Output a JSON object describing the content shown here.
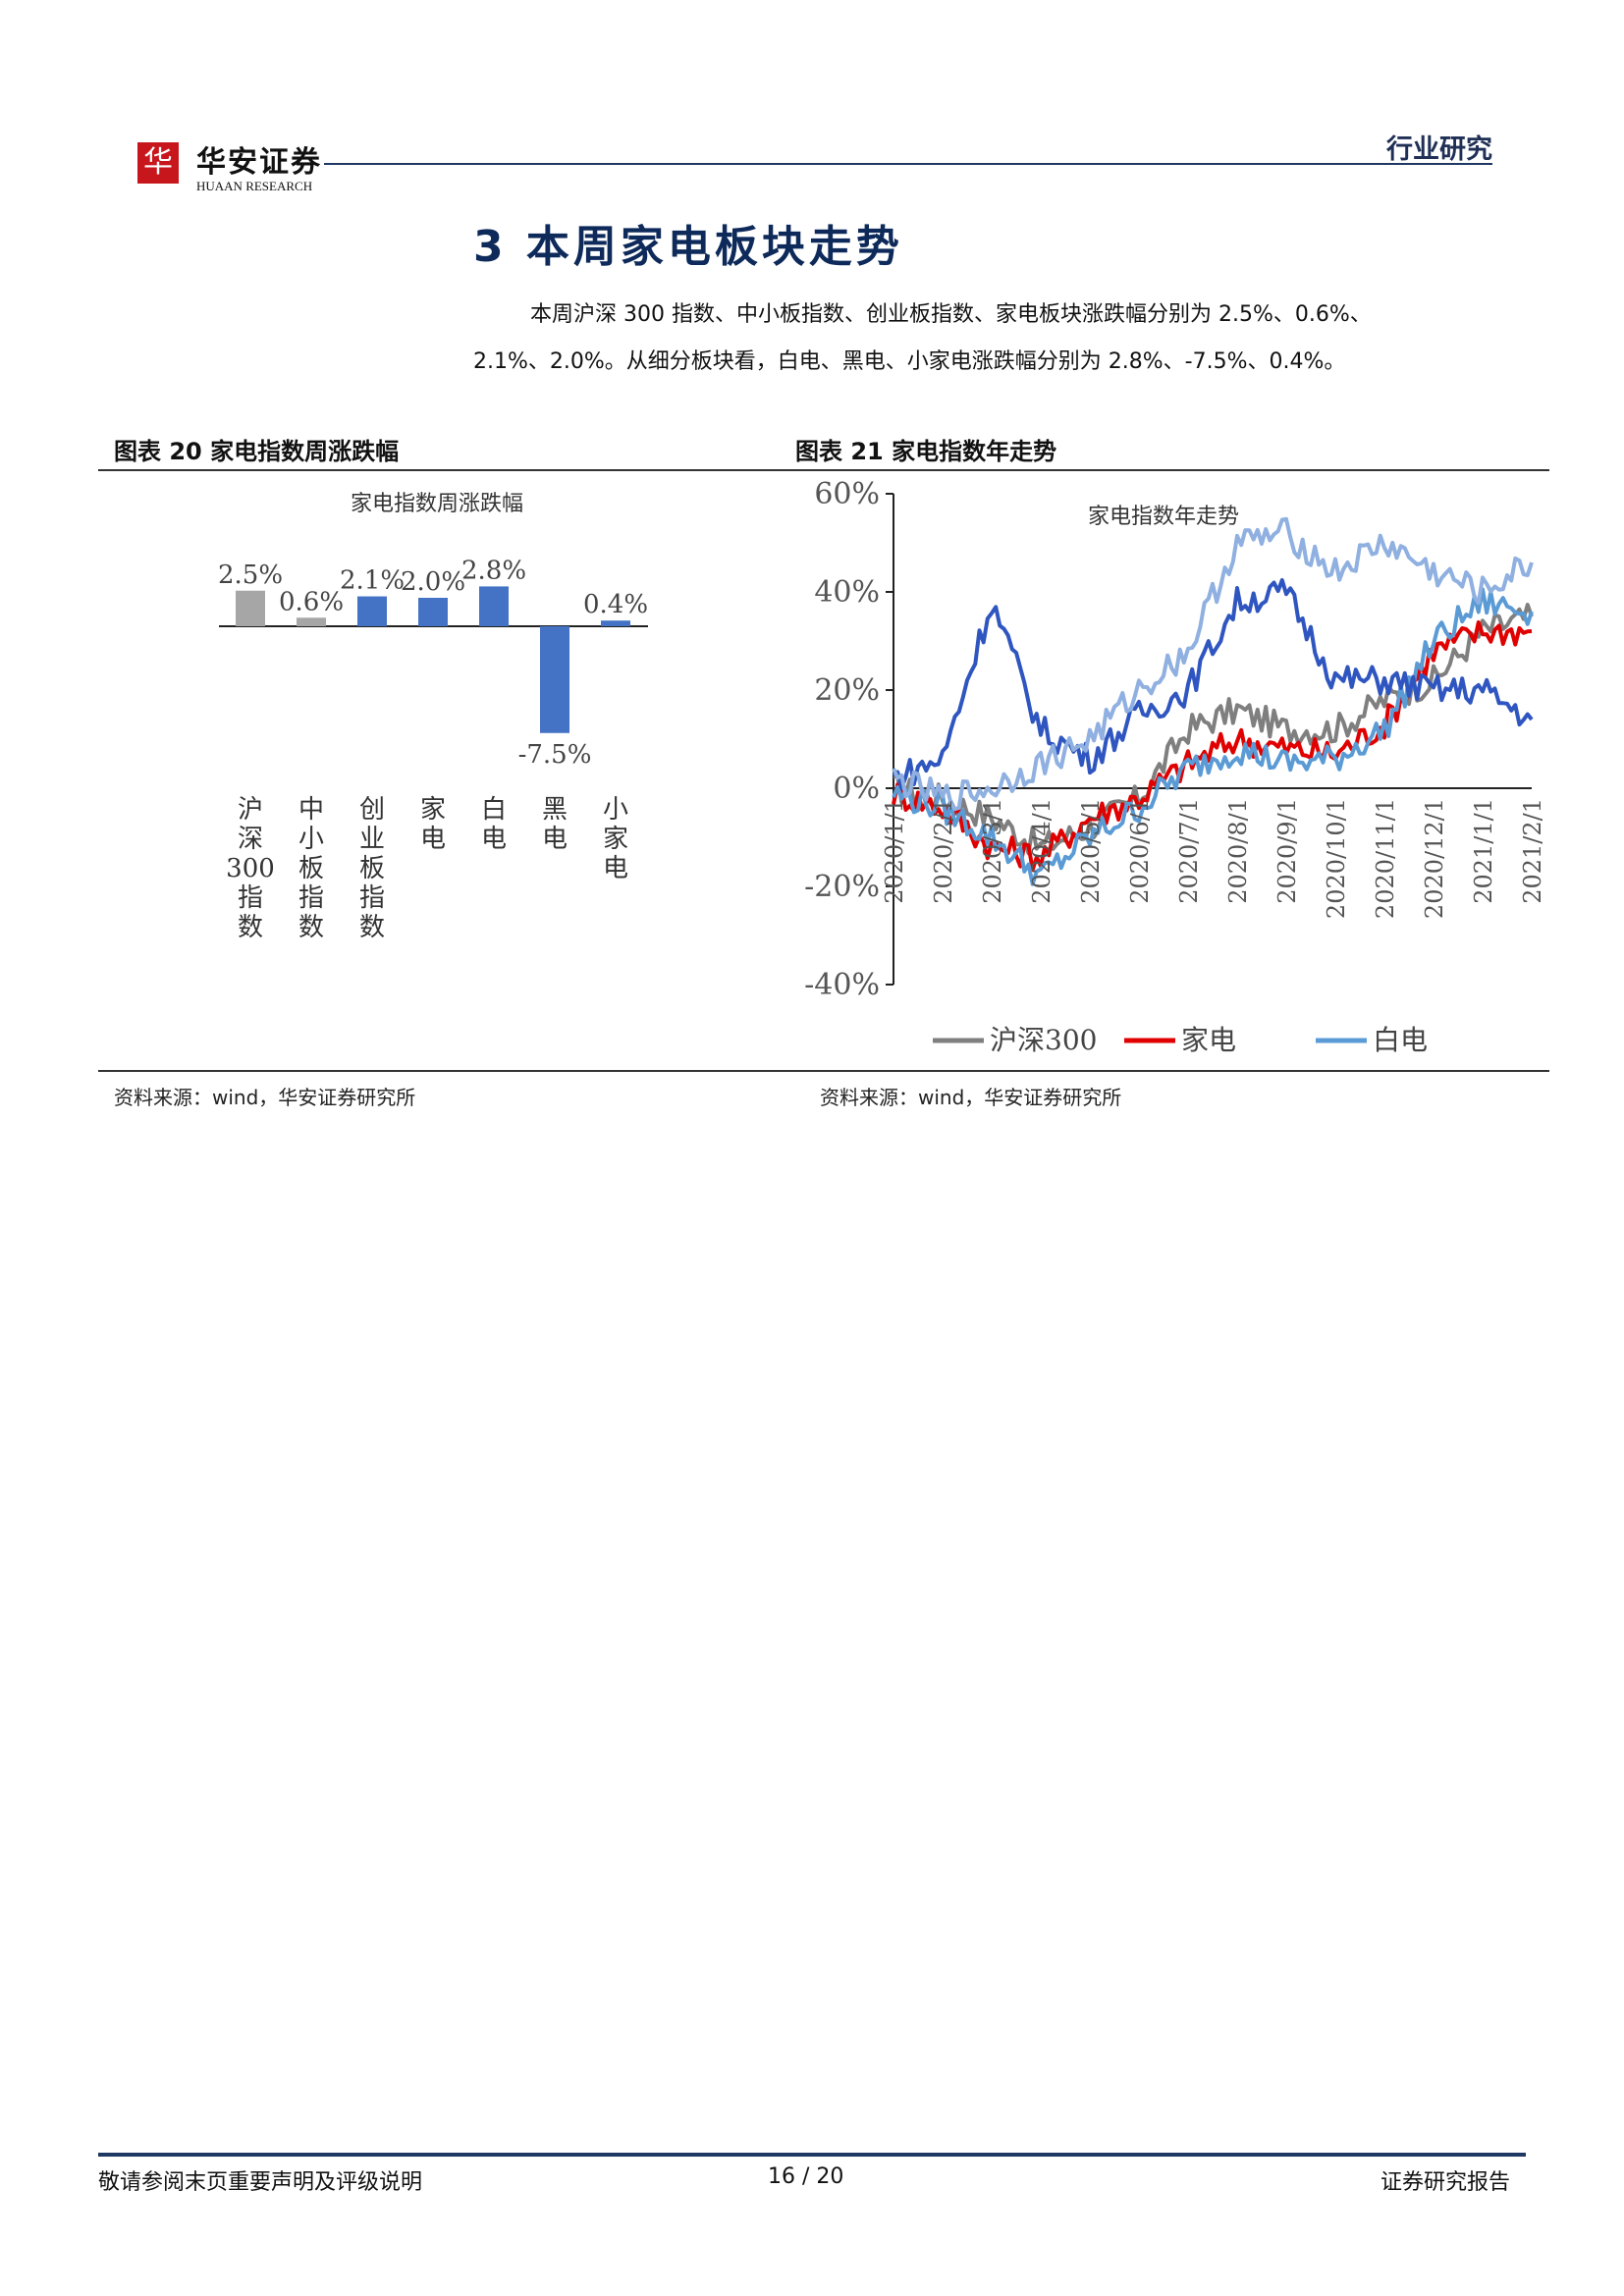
{
  "header": {
    "logo_glyph": "华",
    "brand_cn": "华安证券",
    "brand_en": "HUAAN RESEARCH",
    "section_label": "行业研究",
    "brand_color": "#c8161d"
  },
  "section_title": "3 本周家电板块走势",
  "paragraph": {
    "line1": "本周沪深 300 指数、中小板指数、创业板指数、家电板块涨跌幅分别为 2.5%、0.6%、",
    "line2": "2.1%、2.0%。从细分板块看，白电、黑电、小家电涨跌幅分别为 2.8%、-7.5%、0.4%。"
  },
  "figures": [
    {
      "caption": "图表 20 家电指数周涨跌幅",
      "source": "资料来源：wind，华安证券研究所"
    },
    {
      "caption": "图表 21 家电指数年走势",
      "source": "资料来源：wind，华安证券研究所"
    }
  ],
  "chart_data": [
    {
      "type": "bar",
      "title": "家电指数周涨跌幅",
      "categories": [
        "沪深300指数",
        "中小板指数",
        "创业板指数",
        "家电",
        "白电",
        "黑电",
        "小家电"
      ],
      "values": [
        2.5,
        0.6,
        2.1,
        2.0,
        2.8,
        -7.5,
        0.4
      ],
      "value_labels": [
        "2.5%",
        "0.6%",
        "2.1%",
        "2.0%",
        "2.8%",
        "-7.5%",
        "0.4%"
      ],
      "colors": [
        "#a6a6a6",
        "#a6a6a6",
        "#4472c4",
        "#4472c4",
        "#4472c4",
        "#4472c4",
        "#4472c4"
      ],
      "ylim": [
        -8,
        3
      ],
      "grid": false
    },
    {
      "type": "line",
      "title": "家电指数年走势",
      "x": [
        "2020/1/1",
        "2020/2/1",
        "2020/3/1",
        "2020/4/1",
        "2020/5/1",
        "2020/6/1",
        "2020/7/1",
        "2020/8/1",
        "2020/9/1",
        "2020/10/1",
        "2020/11/1",
        "2020/12/1",
        "2021/1/1",
        "2021/2/1"
      ],
      "ylim": [
        -40,
        60
      ],
      "yticks": [
        "-40%",
        "-20%",
        "0%",
        "20%",
        "40%",
        "60%"
      ],
      "yticks_values": [
        -40,
        -20,
        0,
        20,
        40,
        60
      ],
      "grid": false,
      "legend_position": "bottom",
      "series": [
        {
          "name": "沪深300",
          "color": "#7f7f7f",
          "legend": true,
          "values": [
            0,
            -2,
            -6,
            -12,
            -8,
            -2,
            12,
            16,
            12,
            12,
            18,
            22,
            32,
            35
          ]
        },
        {
          "name": "家电",
          "color": "#e00000",
          "legend": true,
          "values": [
            -1,
            -4,
            -12,
            -14,
            -6,
            -2,
            5,
            10,
            8,
            7,
            13,
            28,
            32,
            32
          ]
        },
        {
          "name": "白电",
          "color": "#5b9bd5",
          "legend": true,
          "values": [
            -1,
            -4,
            -10,
            -18,
            -10,
            -4,
            4,
            8,
            5,
            6,
            12,
            30,
            38,
            36
          ]
        },
        {
          "name": "",
          "color": "#2f56c0",
          "legend": false,
          "values": [
            2,
            6,
            38,
            12,
            6,
            15,
            20,
            38,
            40,
            22,
            22,
            20,
            20,
            14
          ]
        },
        {
          "name": "",
          "color": "#8fb0e0",
          "legend": false,
          "values": [
            2,
            -2,
            0,
            5,
            10,
            20,
            28,
            50,
            52,
            44,
            50,
            44,
            40,
            46
          ]
        }
      ]
    }
  ],
  "footer": {
    "left": "敬请参阅末页重要声明及评级说明",
    "page": "16 / 20",
    "right": "证券研究报告",
    "line_color": "#1f3864"
  }
}
